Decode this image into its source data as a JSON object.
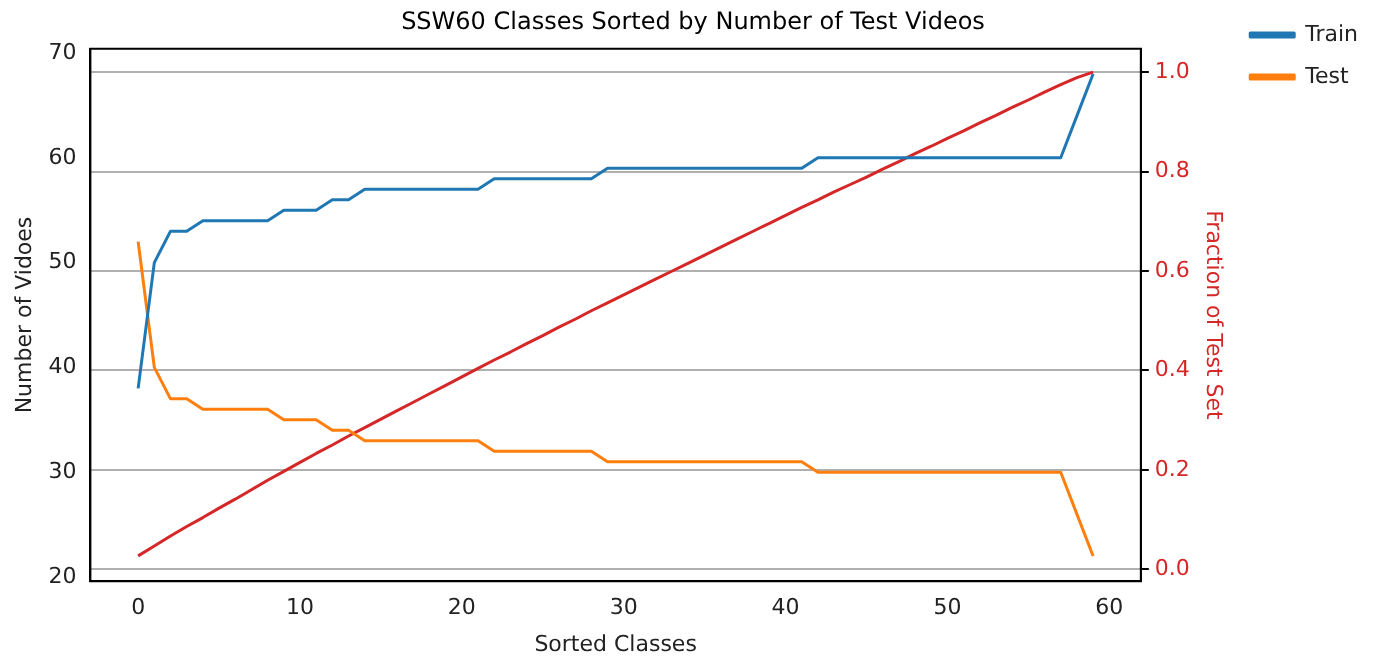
{
  "chart_data": {
    "type": "line",
    "title": "SSW60 Classes Sorted by Number of Test Videos",
    "xlabel": "Sorted Classes",
    "ylabel": "Number of Vidoes",
    "y2label": "Fraction of Test Set",
    "x": [
      0,
      1,
      2,
      3,
      4,
      5,
      6,
      7,
      8,
      9,
      10,
      11,
      12,
      13,
      14,
      15,
      16,
      17,
      18,
      19,
      20,
      21,
      22,
      23,
      24,
      25,
      26,
      27,
      28,
      29,
      30,
      31,
      32,
      33,
      34,
      35,
      36,
      37,
      38,
      39,
      40,
      41,
      42,
      43,
      44,
      45,
      46,
      47,
      48,
      49,
      50,
      51,
      52,
      53,
      54,
      55,
      56,
      57,
      58,
      59
    ],
    "series": [
      {
        "name": "Train",
        "color": "#1f77b4",
        "values": [
          38,
          50,
          53,
          53,
          54,
          54,
          54,
          54,
          54,
          55,
          55,
          55,
          56,
          56,
          57,
          57,
          57,
          57,
          57,
          57,
          57,
          57,
          58,
          58,
          58,
          58,
          58,
          58,
          58,
          59,
          59,
          59,
          59,
          59,
          59,
          59,
          59,
          59,
          59,
          59,
          59,
          59,
          60,
          60,
          60,
          60,
          60,
          60,
          60,
          60,
          60,
          60,
          60,
          60,
          60,
          60,
          60,
          60,
          64,
          68
        ]
      },
      {
        "name": "Test",
        "color": "#ff7f0e",
        "values": [
          52,
          40,
          37,
          37,
          36,
          36,
          36,
          36,
          36,
          35,
          35,
          35,
          34,
          34,
          33,
          33,
          33,
          33,
          33,
          33,
          33,
          33,
          32,
          32,
          32,
          32,
          32,
          32,
          32,
          31,
          31,
          31,
          31,
          31,
          31,
          31,
          31,
          31,
          31,
          31,
          31,
          31,
          30,
          30,
          30,
          30,
          30,
          30,
          30,
          30,
          30,
          30,
          30,
          30,
          30,
          30,
          30,
          30,
          26,
          22
        ]
      },
      {
        "color": "#d62728",
        "axis": "y2",
        "values": [
          0.027,
          0.047,
          0.067,
          0.086,
          0.104,
          0.123,
          0.141,
          0.16,
          0.179,
          0.197,
          0.215,
          0.233,
          0.25,
          0.268,
          0.285,
          0.302,
          0.319,
          0.336,
          0.353,
          0.37,
          0.387,
          0.404,
          0.421,
          0.437,
          0.454,
          0.47,
          0.487,
          0.503,
          0.52,
          0.536,
          0.552,
          0.568,
          0.584,
          0.6,
          0.616,
          0.632,
          0.648,
          0.664,
          0.68,
          0.696,
          0.712,
          0.728,
          0.743,
          0.759,
          0.774,
          0.789,
          0.805,
          0.82,
          0.836,
          0.851,
          0.867,
          0.882,
          0.898,
          0.913,
          0.929,
          0.944,
          0.96,
          0.975,
          0.989,
          1.0
        ]
      }
    ],
    "xlim": [
      -2.95,
      61.95
    ],
    "xticks": [
      0,
      10,
      20,
      30,
      40,
      50,
      60
    ],
    "ylim": [
      19.6,
      70.4
    ],
    "yticks": [
      20,
      30,
      40,
      50,
      60,
      70
    ],
    "y2lim": [
      -0.024,
      1.047
    ],
    "y2ticks": [
      {
        "value": 0,
        "label": "0.0"
      },
      {
        "value": 0.2,
        "label": "0.2"
      },
      {
        "value": 0.4,
        "label": "0.4"
      },
      {
        "value": 0.6,
        "label": "0.6"
      },
      {
        "value": 0.8,
        "label": "0.8"
      },
      {
        "value": 1,
        "label": "1.0"
      }
    ],
    "grid": "y2",
    "legend": "top right"
  }
}
